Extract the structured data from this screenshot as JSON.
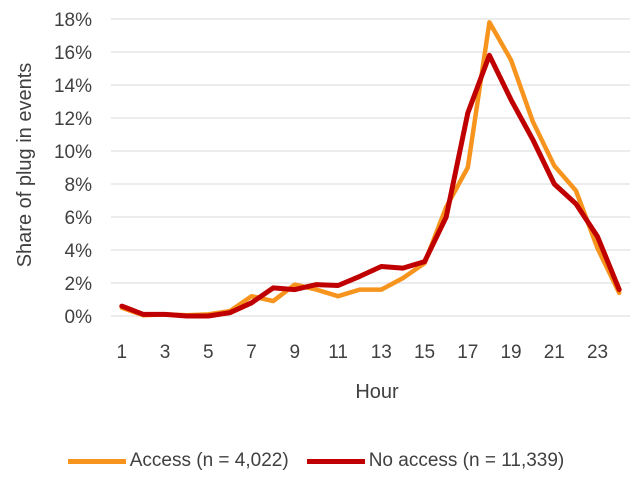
{
  "chart_data": {
    "type": "line",
    "xlabel": "Hour",
    "ylabel": "Share of plug in events",
    "x": [
      1,
      2,
      3,
      4,
      5,
      6,
      7,
      8,
      9,
      10,
      11,
      12,
      13,
      14,
      15,
      16,
      17,
      18,
      19,
      20,
      21,
      22,
      23,
      24
    ],
    "x_tick_labels": [
      "1",
      "3",
      "5",
      "7",
      "9",
      "11",
      "13",
      "15",
      "17",
      "19",
      "21",
      "23"
    ],
    "xlim": [
      1,
      24
    ],
    "ylim": [
      0,
      18
    ],
    "y_tick_labels": [
      "0%",
      "2%",
      "4%",
      "6%",
      "8%",
      "10%",
      "12%",
      "14%",
      "16%",
      "18%"
    ],
    "grid": true,
    "legend_position": "bottom",
    "series": [
      {
        "name": "Access (n = 4,022)",
        "color": "#F7941D",
        "values": [
          0.5,
          0.05,
          0.1,
          0.05,
          0.1,
          0.3,
          1.2,
          0.9,
          1.9,
          1.6,
          1.2,
          1.6,
          1.6,
          2.3,
          3.2,
          6.6,
          9.0,
          17.8,
          15.5,
          11.8,
          9.1,
          7.6,
          4.1,
          1.4
        ]
      },
      {
        "name": "No access (n = 11,339)",
        "color": "#C00000",
        "values": [
          0.6,
          0.1,
          0.1,
          0.0,
          0.0,
          0.2,
          0.8,
          1.7,
          1.6,
          1.9,
          1.85,
          2.4,
          3.0,
          2.9,
          3.3,
          6.0,
          12.3,
          15.8,
          13.1,
          10.7,
          8.0,
          6.8,
          4.8,
          1.6
        ]
      }
    ]
  }
}
